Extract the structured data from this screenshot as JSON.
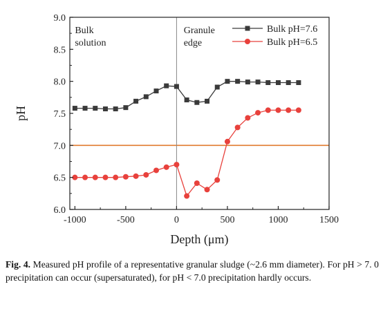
{
  "chart_data": {
    "type": "line",
    "xlabel": "Depth (μm)",
    "ylabel": "pH",
    "xlim": [
      -1050,
      1500
    ],
    "ylim": [
      6.0,
      9.0
    ],
    "xticks": [
      -1000,
      -500,
      0,
      500,
      1000,
      1500
    ],
    "xtick_labels": [
      "-1000",
      "-500",
      "0",
      "500",
      "1000",
      "1500"
    ],
    "yticks": [
      6.0,
      6.5,
      7.0,
      7.5,
      8.0,
      8.5,
      9.0
    ],
    "ytick_labels": [
      "6.0",
      "6.5",
      "7.0",
      "7.5",
      "8.0",
      "8.5",
      "9.0"
    ],
    "grid": false,
    "legend_position": "top-right",
    "series": [
      {
        "name": "Bulk pH=7.6",
        "color": "#3a3a3a",
        "marker": "square",
        "x": [
          -1000,
          -900,
          -800,
          -700,
          -600,
          -500,
          -400,
          -300,
          -200,
          -100,
          0,
          100,
          200,
          300,
          400,
          500,
          600,
          700,
          800,
          900,
          1000,
          1100,
          1200
        ],
        "values": [
          7.58,
          7.58,
          7.58,
          7.57,
          7.57,
          7.59,
          7.69,
          7.76,
          7.85,
          7.93,
          7.92,
          7.71,
          7.67,
          7.69,
          7.91,
          8.0,
          8.0,
          7.99,
          7.99,
          7.98,
          7.98,
          7.98,
          7.98
        ]
      },
      {
        "name": "Bulk pH=6.5",
        "color": "#e8413c",
        "marker": "circle",
        "x": [
          -1000,
          -900,
          -800,
          -700,
          -600,
          -500,
          -400,
          -300,
          -200,
          -100,
          0,
          100,
          200,
          300,
          400,
          500,
          600,
          700,
          800,
          900,
          1000,
          1100,
          1200
        ],
        "values": [
          6.5,
          6.5,
          6.5,
          6.5,
          6.5,
          6.51,
          6.52,
          6.54,
          6.61,
          6.66,
          6.7,
          6.21,
          6.41,
          6.31,
          6.46,
          7.06,
          7.28,
          7.43,
          7.51,
          7.55,
          7.55,
          7.55,
          7.55
        ]
      }
    ],
    "reference_lines": [
      {
        "axis": "y",
        "value": 7.0,
        "color": "#e07a2e"
      },
      {
        "axis": "x",
        "value": 0,
        "color": "#888888"
      }
    ],
    "annotations": [
      {
        "lines": [
          "Bulk",
          "solution"
        ],
        "x": -1000,
        "y": 8.75
      },
      {
        "lines": [
          "Granule",
          "edge"
        ],
        "x": 70,
        "y": 8.75
      }
    ]
  },
  "caption": {
    "label": "Fig. 4.",
    "text": "Measured pH profile of a representative granular sludge (~2.6 mm diameter). For pH > 7. 0 precipitation can occur (supersaturated), for pH < 7.0 precipitation hardly occurs."
  }
}
